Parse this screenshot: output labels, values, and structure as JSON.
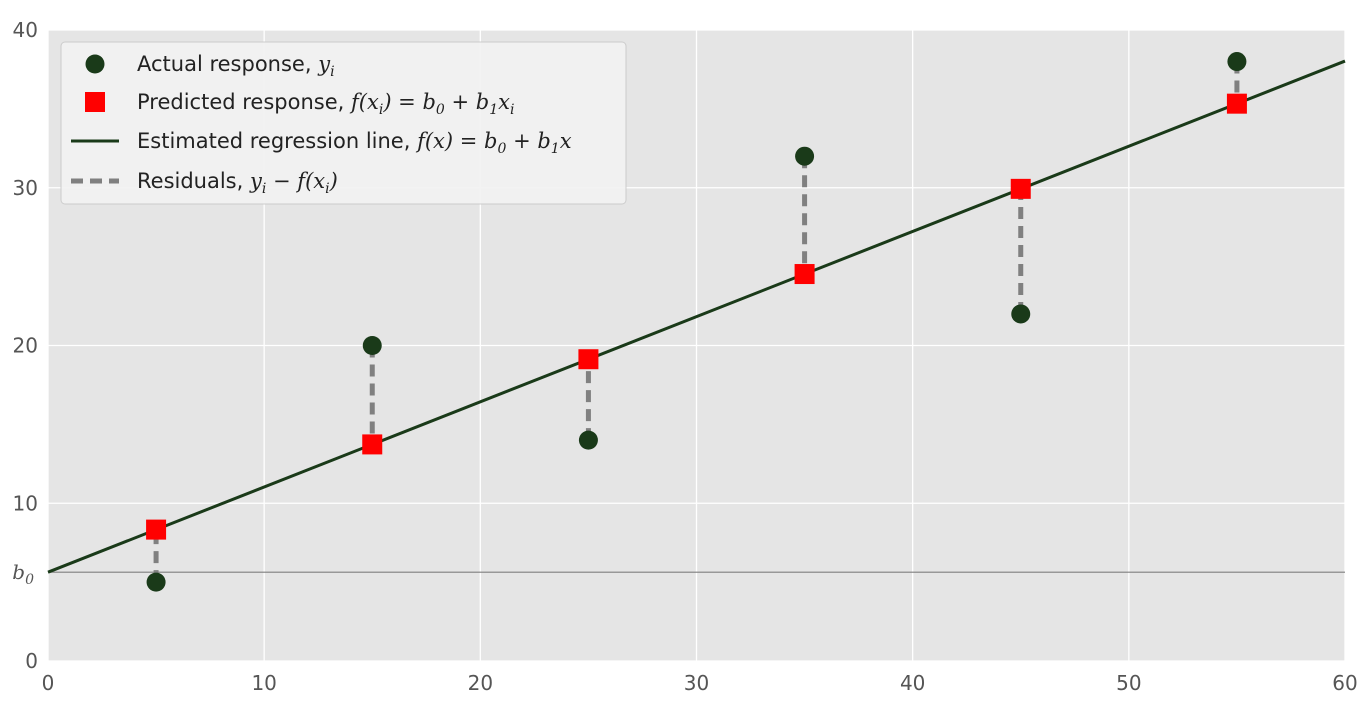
{
  "chart_data": {
    "type": "scatter",
    "title": "",
    "xlabel": "",
    "ylabel": "",
    "xlim": [
      0,
      60
    ],
    "ylim": [
      0,
      40
    ],
    "grid": true,
    "legend_position": "top-left",
    "x_ticks": [
      0,
      10,
      20,
      30,
      40,
      50,
      60
    ],
    "y_ticks": [
      0,
      10,
      20,
      30,
      40
    ],
    "intercept_tick": {
      "value": 5.63,
      "label": "b",
      "subscript": "0"
    },
    "colors": {
      "background": "#e5e5e5",
      "grid": "#ffffff",
      "actual": "#1a3a19",
      "predicted": "#ff0000",
      "line": "#1a3a19",
      "residual": "#808080",
      "intercept_line": "#7f7f7f"
    },
    "series": [
      {
        "name": "Actual response",
        "kind": "actual",
        "x": [
          5,
          15,
          25,
          35,
          45,
          55
        ],
        "y": [
          5,
          20,
          14,
          32,
          22,
          38
        ]
      },
      {
        "name": "Predicted response",
        "kind": "predicted",
        "x": [
          5,
          15,
          25,
          35,
          45,
          55
        ],
        "y": [
          8.33,
          13.73,
          19.13,
          24.53,
          29.93,
          35.33
        ]
      },
      {
        "name": "Estimated regression line",
        "kind": "line",
        "intercept": 5.63,
        "slope": 0.54
      },
      {
        "name": "Residuals",
        "kind": "residuals"
      }
    ],
    "legend": [
      {
        "kind": "actual",
        "text": "Actual response, ",
        "math": [
          [
            "y",
            null
          ],
          [
            "i",
            "sub"
          ]
        ]
      },
      {
        "kind": "predicted",
        "text": "Predicted response, ",
        "math": [
          [
            "f",
            null
          ],
          [
            "(x",
            null
          ],
          [
            "i",
            "sub"
          ],
          [
            ") = b",
            null
          ],
          [
            "0",
            "sub"
          ],
          [
            " + b",
            null
          ],
          [
            "1",
            "sub"
          ],
          [
            "x",
            null
          ],
          [
            "i",
            "sub"
          ]
        ]
      },
      {
        "kind": "line",
        "text": "Estimated regression line, ",
        "math": [
          [
            "f",
            null
          ],
          [
            "(x) = b",
            null
          ],
          [
            "0",
            "sub"
          ],
          [
            " + b",
            null
          ],
          [
            "1",
            "sub"
          ],
          [
            "x",
            null
          ]
        ]
      },
      {
        "kind": "residuals",
        "text": "Residuals, ",
        "math": [
          [
            "y",
            null
          ],
          [
            "i",
            "sub"
          ],
          [
            " − f(x",
            null
          ],
          [
            "i",
            "sub"
          ],
          [
            ")",
            null
          ]
        ]
      }
    ]
  }
}
